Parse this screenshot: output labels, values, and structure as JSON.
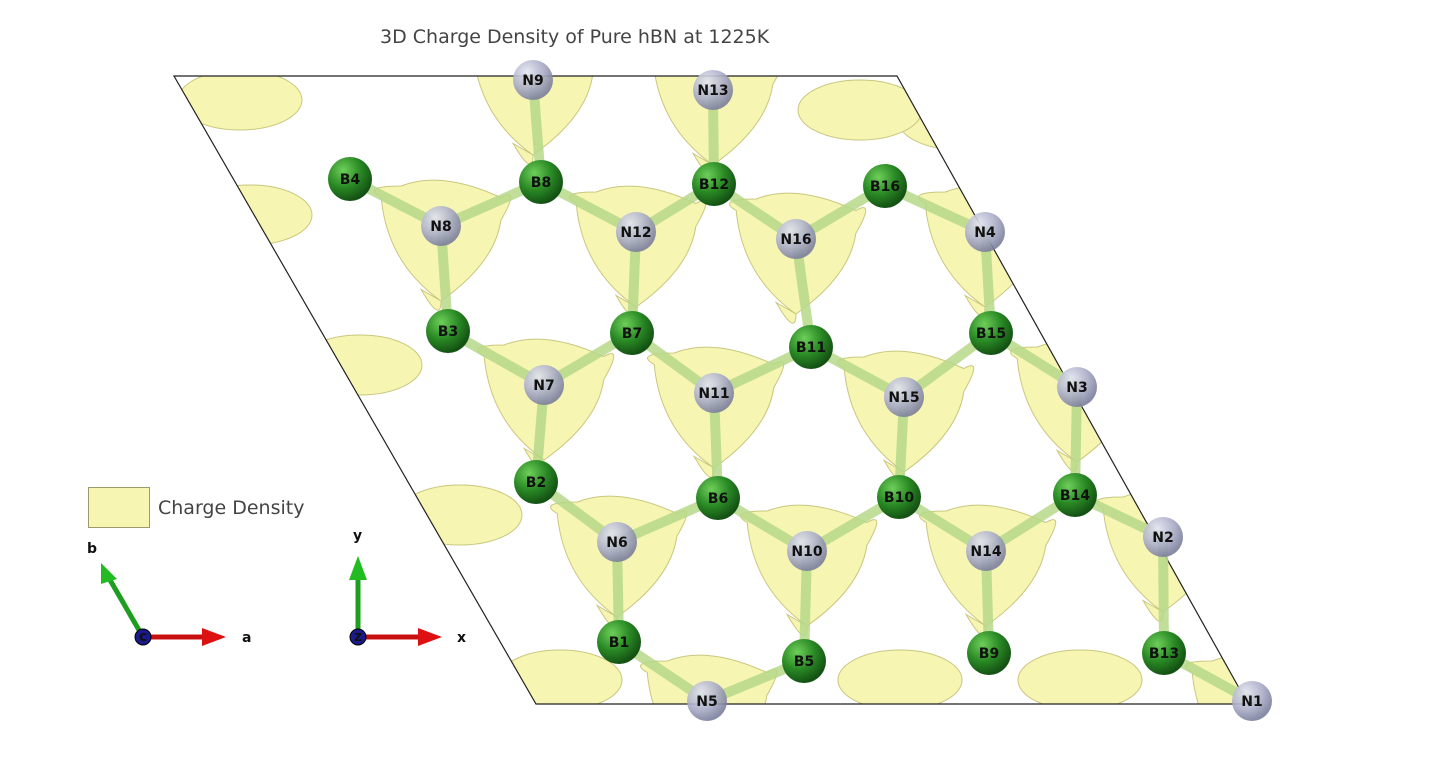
{
  "title": "3D Charge Density of Pure hBN at 1225K",
  "legend": {
    "label": "Charge Density"
  },
  "colors": {
    "isosurface": "#f6f5b2",
    "isosurface_edge": "#c9c77e",
    "boron": "#2e8b2e",
    "nitrogen": "#b3b6cc",
    "bond": "#b7d98a",
    "axis_a": "#dd1111",
    "axis_b": "#22bb22",
    "axis_c": "#1a1a8c"
  },
  "lattice_axes": {
    "a": "a",
    "b": "b",
    "c": "c"
  },
  "cartesian_axes": {
    "x": "x",
    "y": "y",
    "z": "z"
  },
  "atoms": [
    {
      "label": "B1",
      "el": "B"
    },
    {
      "label": "B2",
      "el": "B"
    },
    {
      "label": "B3",
      "el": "B"
    },
    {
      "label": "B4",
      "el": "B"
    },
    {
      "label": "B5",
      "el": "B"
    },
    {
      "label": "B6",
      "el": "B"
    },
    {
      "label": "B7",
      "el": "B"
    },
    {
      "label": "B8",
      "el": "B"
    },
    {
      "label": "B9",
      "el": "B"
    },
    {
      "label": "B10",
      "el": "B"
    },
    {
      "label": "B11",
      "el": "B"
    },
    {
      "label": "B12",
      "el": "B"
    },
    {
      "label": "B13",
      "el": "B"
    },
    {
      "label": "B14",
      "el": "B"
    },
    {
      "label": "B15",
      "el": "B"
    },
    {
      "label": "B16",
      "el": "B"
    },
    {
      "label": "N1",
      "el": "N"
    },
    {
      "label": "N2",
      "el": "N"
    },
    {
      "label": "N3",
      "el": "N"
    },
    {
      "label": "N4",
      "el": "N"
    },
    {
      "label": "N5",
      "el": "N"
    },
    {
      "label": "N6",
      "el": "N"
    },
    {
      "label": "N7",
      "el": "N"
    },
    {
      "label": "N8",
      "el": "N"
    },
    {
      "label": "N9",
      "el": "N"
    },
    {
      "label": "N10",
      "el": "N"
    },
    {
      "label": "N11",
      "el": "N"
    },
    {
      "label": "N12",
      "el": "N"
    },
    {
      "label": "N13",
      "el": "N"
    },
    {
      "label": "N14",
      "el": "N"
    },
    {
      "label": "N15",
      "el": "N"
    },
    {
      "label": "N16",
      "el": "N"
    }
  ]
}
